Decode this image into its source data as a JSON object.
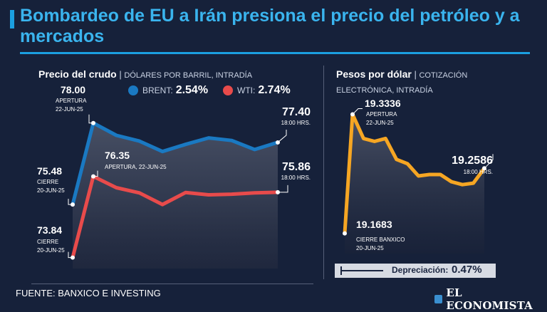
{
  "title": "Bombardeo de EU a Irán presiona el precio del petróleo y a mercados",
  "colors": {
    "brent": "#1a79c2",
    "wti": "#e84b4b",
    "peso": "#f6a623",
    "accent": "#1b9fe0"
  },
  "footer": {
    "source": "FUENTE: BANXICO E INVESTING",
    "brand": "EL ECONOMISTA"
  },
  "crude_panel": {
    "heading": "Precio del crudo",
    "separator": "|",
    "subheading": "DÓLARES POR BARRIL, INTRADÍA",
    "legend": [
      {
        "name": "BRENT:",
        "value": "2.54%"
      },
      {
        "name": "WTI:",
        "value": "2.74%"
      }
    ]
  },
  "peso_panel": {
    "heading": "Pesos por dólar",
    "separator": "|",
    "subheading": "COTIZACIÓN",
    "subheading2": "ELECTRÓNICA, INTRADÍA",
    "depreciation_label": "Depreciación:",
    "depreciation_value": "0.47%"
  },
  "chart_data": [
    {
      "type": "area",
      "title": "Precio del crudo",
      "ylabel": "Dólares por barril",
      "ylim": [
        73.5,
        78.5
      ],
      "series": [
        {
          "name": "BRENT",
          "values": [
            75.48,
            78.0,
            77.62,
            77.44,
            77.12,
            77.34,
            77.54,
            77.46,
            77.18,
            77.4
          ],
          "annotations": [
            {
              "index": 0,
              "value": "75.48",
              "lines": [
                "CIERRE",
                "20-JUN-25"
              ]
            },
            {
              "index": 1,
              "value": "78.00",
              "lines": [
                "APERTURA",
                "22-JUN-25"
              ]
            },
            {
              "index": 9,
              "value": "77.40",
              "lines": [
                "18:00 HRS."
              ]
            }
          ]
        },
        {
          "name": "WTI",
          "values": [
            73.84,
            76.35,
            76.0,
            75.84,
            75.48,
            75.85,
            75.78,
            75.8,
            75.84,
            75.86
          ],
          "annotations": [
            {
              "index": 0,
              "value": "73.84",
              "lines": [
                "CIERRE",
                "20-JUN-25"
              ]
            },
            {
              "index": 1,
              "value": "76.35",
              "lines": [
                "APERTURA, 22-JUN-25"
              ]
            },
            {
              "index": 9,
              "value": "75.86",
              "lines": [
                "18:00 HRS."
              ]
            }
          ]
        }
      ]
    },
    {
      "type": "area",
      "title": "Pesos por dólar",
      "ylabel": "Pesos por dólar",
      "ylim": [
        19.16,
        19.34
      ],
      "series": [
        {
          "name": "Pesos por dólar",
          "values": [
            19.1683,
            19.3336,
            19.3,
            19.296,
            19.3,
            19.271,
            19.265,
            19.248,
            19.25,
            19.25,
            19.24,
            19.236,
            19.238,
            19.2586
          ],
          "annotations": [
            {
              "index": 0,
              "value": "19.1683",
              "lines": [
                "CIERRE BANXICO",
                "20-JUN-25"
              ]
            },
            {
              "index": 1,
              "value": "19.3336",
              "lines": [
                "APERTURA",
                "22-JUN-25"
              ]
            },
            {
              "index": 13,
              "value": "19.2586",
              "lines": [
                "18:00 HRS."
              ]
            }
          ]
        }
      ]
    }
  ]
}
